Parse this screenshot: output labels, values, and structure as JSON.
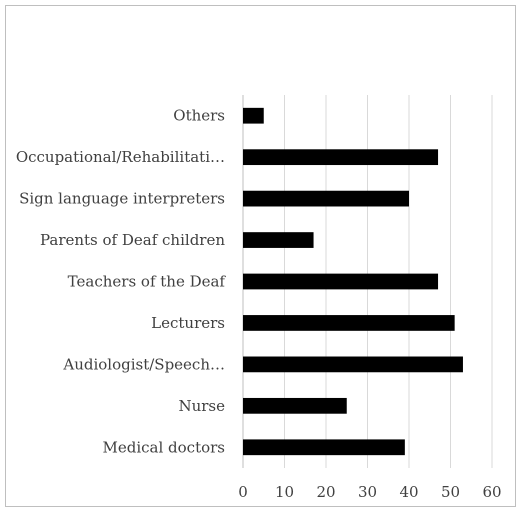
{
  "chart_data": {
    "type": "bar",
    "orientation": "horizontal",
    "title": "",
    "xlabel": "",
    "ylabel": "",
    "categories": [
      "Medical doctors",
      "Nurse",
      "Audiologist/Speech…",
      "Lecturers",
      "Teachers of the Deaf",
      "Parents of Deaf children",
      "Sign language interpreters",
      "Occupational/Rehabilitati…",
      "Others"
    ],
    "values": [
      39,
      25,
      53,
      51,
      47,
      17,
      40,
      47,
      5
    ],
    "xlim": [
      0,
      60
    ],
    "xticks": [
      "0",
      "10",
      "20",
      "30",
      "40",
      "50",
      "60"
    ],
    "grid": "vertical",
    "legend": "none",
    "bar_color": "#000000",
    "grid_color": "#d9d9d9"
  }
}
